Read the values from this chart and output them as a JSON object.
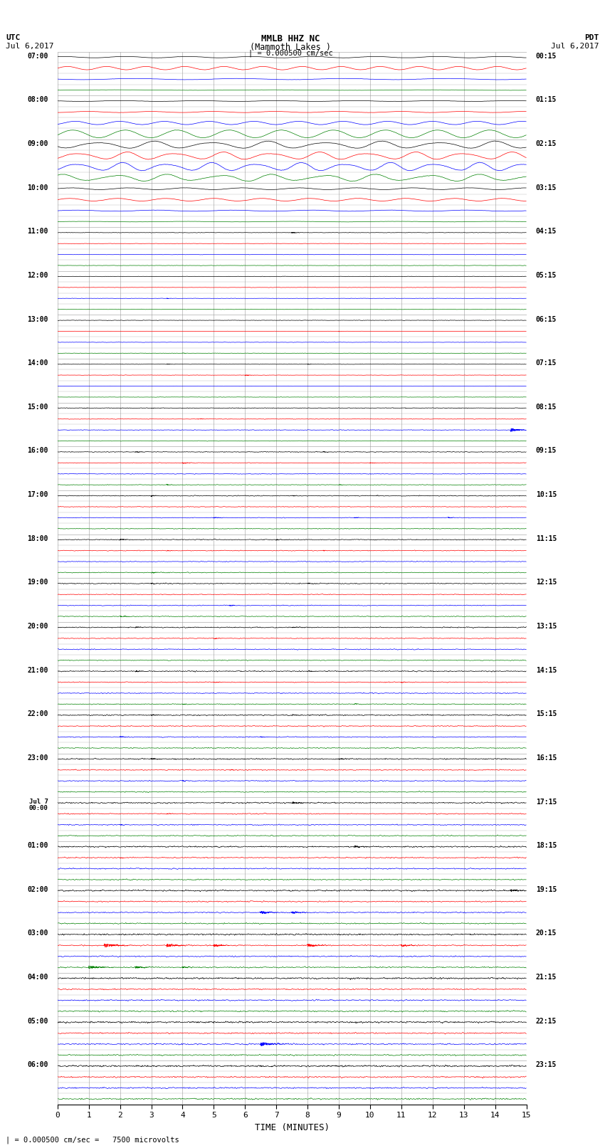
{
  "title_line1": "MMLB HHZ NC",
  "title_line2": "(Mammoth Lakes )",
  "title_line3": "| = 0.000500 cm/sec",
  "utc_label": "UTC",
  "utc_date": "Jul 6,2017",
  "pdt_label": "PDT",
  "pdt_date": "Jul 6,2017",
  "xlabel": "TIME (MINUTES)",
  "footnote": "| = 0.000500 cm/sec =   7500 microvolts",
  "xlim": [
    0,
    15
  ],
  "xticks": [
    0,
    1,
    2,
    3,
    4,
    5,
    6,
    7,
    8,
    9,
    10,
    11,
    12,
    13,
    14,
    15
  ],
  "bg_color": "#ffffff",
  "grid_color": "#aaaaaa",
  "trace_colors": [
    "black",
    "red",
    "blue",
    "green"
  ],
  "hour_labels_left": [
    "07:00",
    "08:00",
    "09:00",
    "10:00",
    "11:00",
    "12:00",
    "13:00",
    "14:00",
    "15:00",
    "16:00",
    "17:00",
    "18:00",
    "19:00",
    "20:00",
    "21:00",
    "22:00",
    "23:00",
    "Jul 7\n00:00",
    "01:00",
    "02:00",
    "03:00",
    "04:00",
    "05:00",
    "06:00"
  ],
  "hour_labels_right": [
    "00:15",
    "01:15",
    "02:15",
    "03:15",
    "04:15",
    "05:15",
    "06:15",
    "07:15",
    "08:15",
    "09:15",
    "10:15",
    "11:15",
    "12:15",
    "13:15",
    "14:15",
    "15:15",
    "16:15",
    "17:15",
    "18:15",
    "19:15",
    "20:15",
    "21:15",
    "22:15",
    "23:15"
  ]
}
